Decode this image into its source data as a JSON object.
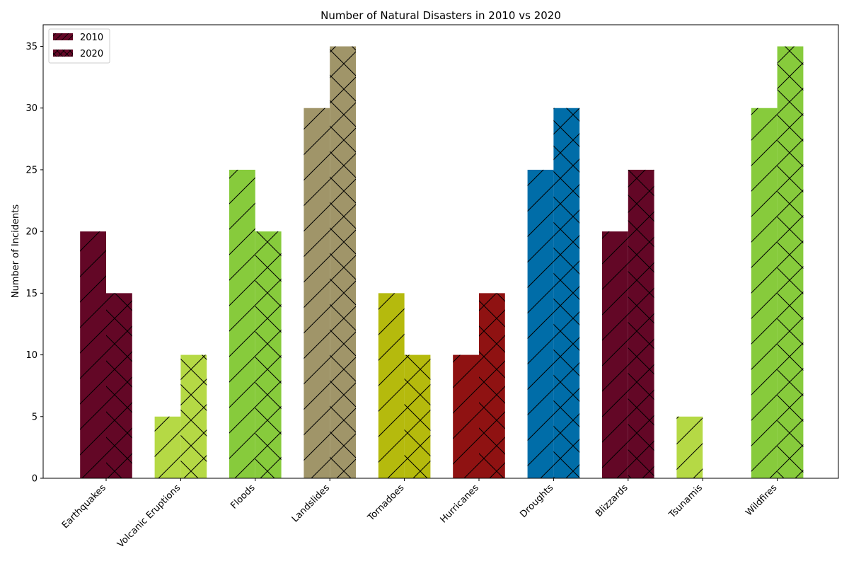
{
  "chart_data": {
    "type": "bar",
    "title": "Number of Natural Disasters in 2010 vs 2020",
    "xlabel": "",
    "ylabel": "Number of Incidents",
    "ylim": [
      0,
      36.75
    ],
    "yticks": [
      0,
      5,
      10,
      15,
      20,
      25,
      30,
      35
    ],
    "grid": false,
    "legend_position": "top-left",
    "categories": [
      "Earthquakes",
      "Volcanic Eruptions",
      "Floods",
      "Landslides",
      "Tornadoes",
      "Hurricanes",
      "Droughts",
      "Blizzards",
      "Tsunamis",
      "Wildfires"
    ],
    "category_colors": [
      "#630726",
      "#b5d945",
      "#87cb3c",
      "#a09569",
      "#b5ba0d",
      "#8f1212",
      "#006da8",
      "#630726",
      "#b5d945",
      "#87cb3c"
    ],
    "legend_color": "#630726",
    "series": [
      {
        "name": "2010",
        "hatch": "/",
        "values": [
          20,
          5,
          25,
          30,
          15,
          10,
          25,
          20,
          5,
          30
        ]
      },
      {
        "name": "2020",
        "hatch": "x",
        "values": [
          15,
          10,
          20,
          35,
          10,
          15,
          30,
          25,
          0,
          35
        ]
      }
    ]
  }
}
